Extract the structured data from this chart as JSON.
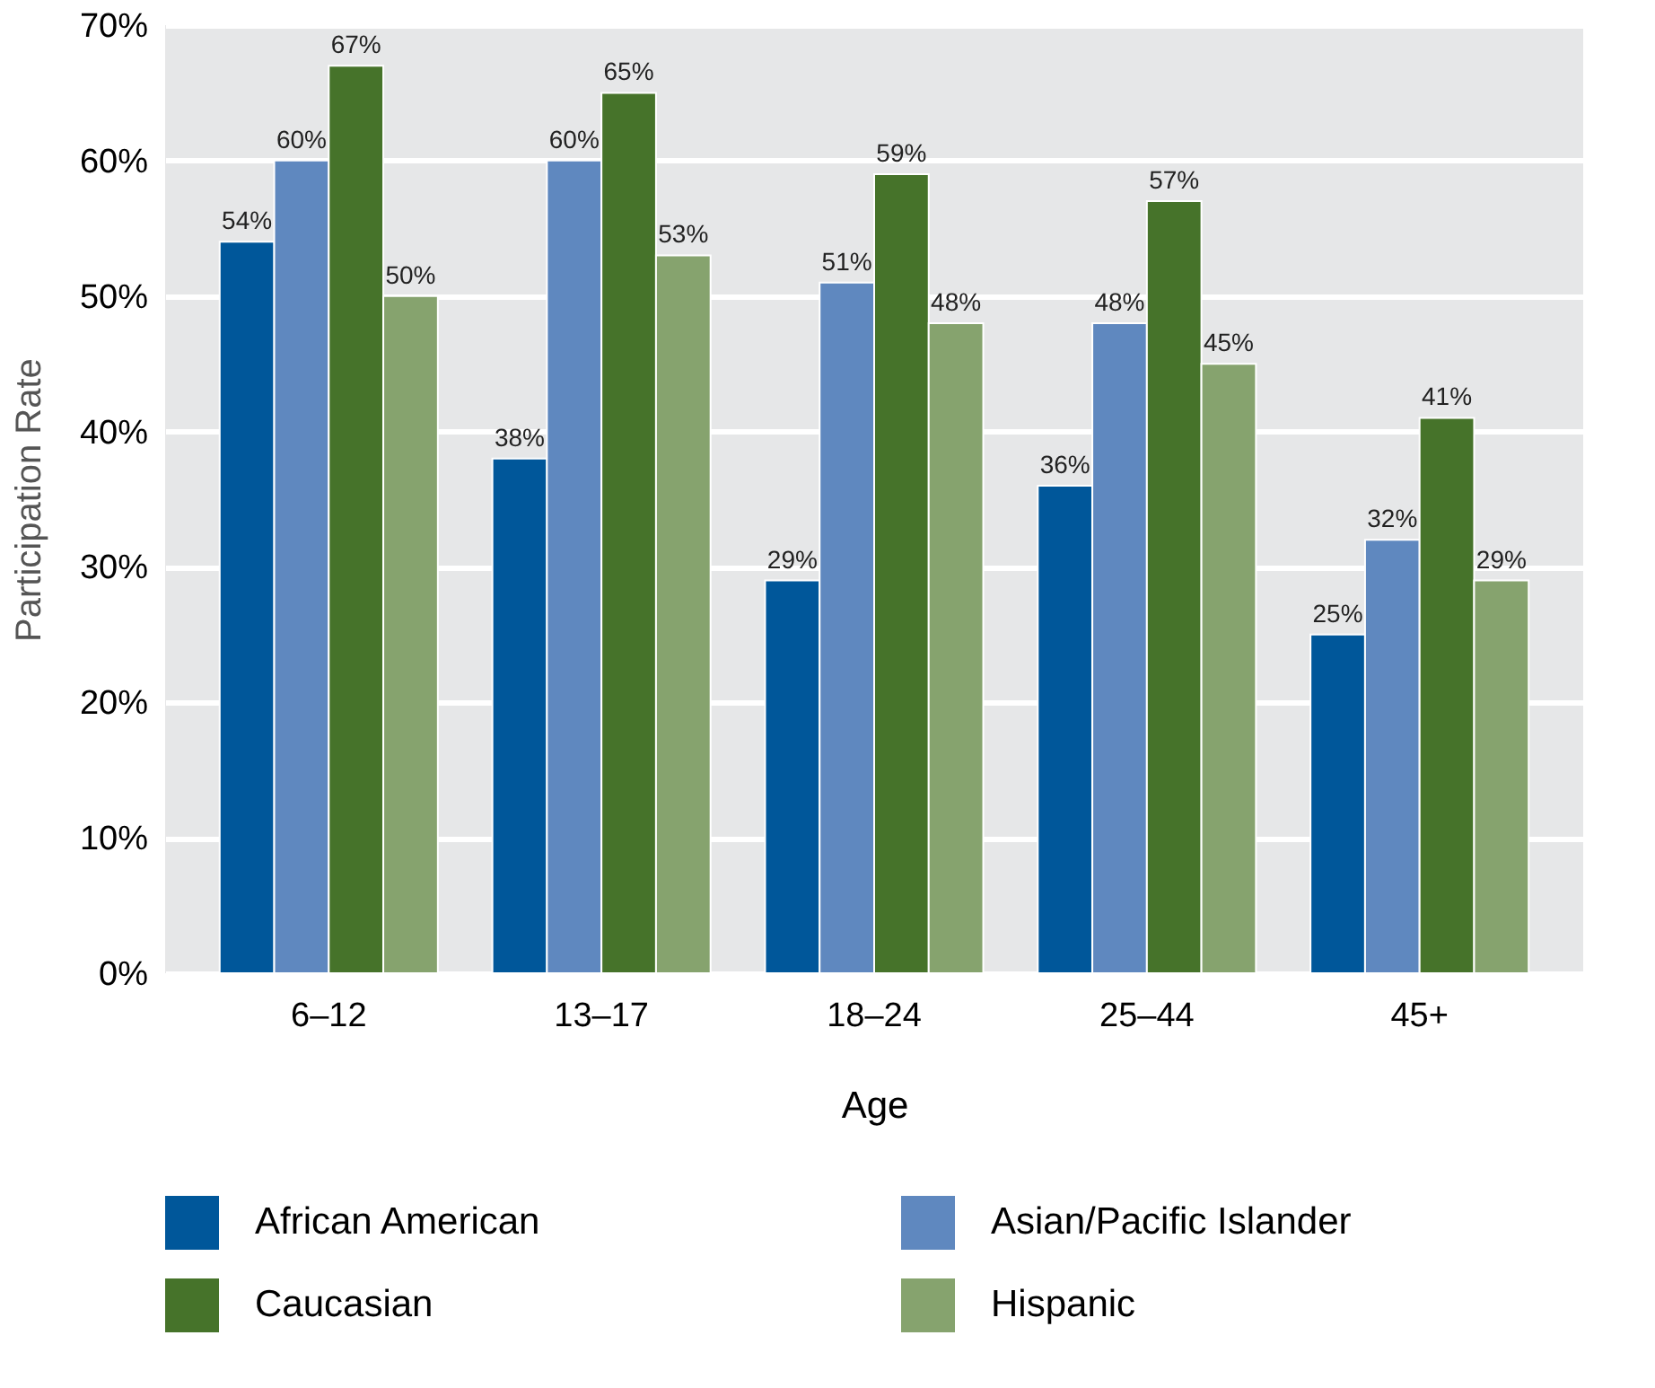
{
  "chart_data": {
    "type": "bar",
    "xlabel": "Age",
    "ylabel": "Participation Rate",
    "categories": [
      "6–12",
      "13–17",
      "18–24",
      "25–44",
      "45+"
    ],
    "series": [
      {
        "name": "African American",
        "color": "#00579a",
        "values": [
          54,
          38,
          29,
          36,
          25
        ],
        "value_labels": [
          "54%",
          "38%",
          "29%",
          "36%",
          "25%"
        ]
      },
      {
        "name": "Asian/Pacific Islander",
        "color": "#5f88bf",
        "values": [
          60,
          60,
          51,
          48,
          32
        ],
        "value_labels": [
          "60%",
          "60%",
          "51%",
          "48%",
          "32%"
        ]
      },
      {
        "name": "Caucasian",
        "color": "#46732a",
        "values": [
          67,
          65,
          59,
          57,
          41
        ],
        "value_labels": [
          "67%",
          "65%",
          "59%",
          "57%",
          "41%"
        ]
      },
      {
        "name": "Hispanic",
        "color": "#86a36e",
        "values": [
          50,
          53,
          48,
          45,
          29
        ],
        "value_labels": [
          "50%",
          "53%",
          "48%",
          "45%",
          "29%"
        ]
      }
    ],
    "ylim": [
      0,
      70
    ],
    "yticks": [
      {
        "value": 0,
        "label": "0%"
      },
      {
        "value": 10,
        "label": "10%"
      },
      {
        "value": 20,
        "label": "20%"
      },
      {
        "value": 30,
        "label": "30%"
      },
      {
        "value": 40,
        "label": "40%"
      },
      {
        "value": 50,
        "label": "50%"
      },
      {
        "value": 60,
        "label": "60%"
      },
      {
        "value": 70,
        "label": "70%"
      }
    ],
    "grid": "y",
    "legend": "bottom"
  }
}
